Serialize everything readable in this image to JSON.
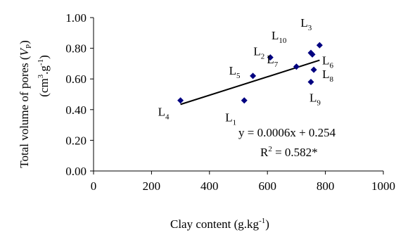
{
  "chart_data": {
    "type": "scatter",
    "xlabel": "Clay content (g.kg",
    "xlabel_sup": "-1",
    "xlabel_end": ")",
    "ylabel_line1_a": "Total volume of pores (",
    "ylabel_line1_var": "V",
    "ylabel_line1_sub": "P",
    "ylabel_line1_b": ")",
    "ylabel_line2_a": "(cm",
    "ylabel_line2_sup1": "3",
    "ylabel_line2_b": ".g",
    "ylabel_line2_sup2": "-1",
    "ylabel_line2_c": ")",
    "xlim": [
      0,
      1000
    ],
    "ylim": [
      0.0,
      1.0
    ],
    "xticks": [
      "0",
      "200",
      "400",
      "600",
      "800",
      "1000"
    ],
    "xtick_values": [
      0,
      200,
      400,
      600,
      800,
      1000
    ],
    "yticks": [
      "0.00",
      "0.20",
      "0.40",
      "0.60",
      "0.80",
      "1.00"
    ],
    "ytick_values": [
      0.0,
      0.2,
      0.4,
      0.6,
      0.8,
      1.0
    ],
    "grid": false,
    "marker_color": "#000080",
    "points": [
      {
        "label": "L",
        "sub": "1",
        "x": 520,
        "y": 0.46
      },
      {
        "label": "L",
        "sub": "2",
        "x": 610,
        "y": 0.74
      },
      {
        "label": "L",
        "sub": "3",
        "x": 780,
        "y": 0.82
      },
      {
        "label": "L",
        "sub": "4",
        "x": 300,
        "y": 0.46
      },
      {
        "label": "L",
        "sub": "5",
        "x": 550,
        "y": 0.62
      },
      {
        "label": "L",
        "sub": "6",
        "x": 755,
        "y": 0.76
      },
      {
        "label": "L",
        "sub": "7",
        "x": 700,
        "y": 0.68
      },
      {
        "label": "L",
        "sub": "8",
        "x": 760,
        "y": 0.66
      },
      {
        "label": "L",
        "sub": "9",
        "x": 750,
        "y": 0.58
      },
      {
        "label": "L",
        "sub": "10",
        "x": 750,
        "y": 0.77
      }
    ],
    "trendline": {
      "slope": 0.0006,
      "intercept": 0.254,
      "x_start": 300,
      "x_end": 780
    },
    "equation": "y = 0.0006x + 0.254",
    "r2_text": "R",
    "r2_sup": "2",
    "r2_value": " = 0.582*"
  }
}
